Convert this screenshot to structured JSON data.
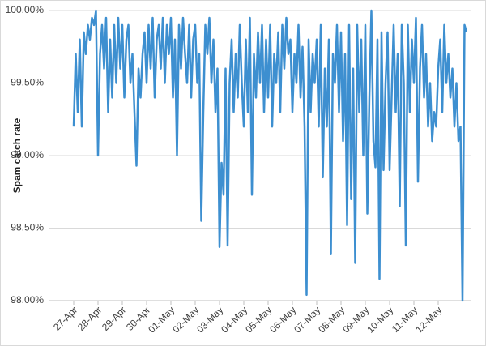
{
  "chart_data": {
    "type": "line",
    "y_label": "Spam catch rate",
    "categories": [
      "27-Apr",
      null,
      null,
      null,
      null,
      null,
      null,
      null,
      null,
      null,
      null,
      null,
      "28-Apr",
      null,
      null,
      null,
      null,
      null,
      null,
      null,
      null,
      null,
      null,
      null,
      "29-Apr",
      null,
      null,
      null,
      null,
      null,
      null,
      null,
      null,
      null,
      null,
      null,
      "30-Apr",
      null,
      null,
      null,
      null,
      null,
      null,
      null,
      null,
      null,
      null,
      null,
      "01-May",
      null,
      null,
      null,
      null,
      null,
      null,
      null,
      null,
      null,
      null,
      null,
      "02-May",
      null,
      null,
      null,
      null,
      null,
      null,
      null,
      null,
      null,
      null,
      null,
      "03-May",
      null,
      null,
      null,
      null,
      null,
      null,
      null,
      null,
      null,
      null,
      null,
      "04-May",
      null,
      null,
      null,
      null,
      null,
      null,
      null,
      null,
      null,
      null,
      null,
      "05-May",
      null,
      null,
      null,
      null,
      null,
      null,
      null,
      null,
      null,
      null,
      null,
      "06-May",
      null,
      null,
      null,
      null,
      null,
      null,
      null,
      null,
      null,
      null,
      null,
      "07-May",
      null,
      null,
      null,
      null,
      null,
      null,
      null,
      null,
      null,
      null,
      null,
      "08-May",
      null,
      null,
      null,
      null,
      null,
      null,
      null,
      null,
      null,
      null,
      null,
      "09-May",
      null,
      null,
      null,
      null,
      null,
      null,
      null,
      null,
      null,
      null,
      null,
      "10-May",
      null,
      null,
      null,
      null,
      null,
      null,
      null,
      null,
      null,
      null,
      null,
      "11-May",
      null,
      null,
      null,
      null,
      null,
      null,
      null,
      null,
      null,
      null,
      null,
      "12-May",
      null,
      null,
      null,
      null,
      null,
      null,
      null,
      null,
      null,
      null,
      null,
      null,
      null,
      null
    ],
    "series": [
      {
        "color": "#3d8fd0",
        "values": [
          99.2,
          99.7,
          99.3,
          99.8,
          99.2,
          99.85,
          99.7,
          99.9,
          99.8,
          99.95,
          99.9,
          100.0,
          99.0,
          99.7,
          99.9,
          99.6,
          99.95,
          99.3,
          99.8,
          99.4,
          99.9,
          99.5,
          99.95,
          99.6,
          99.9,
          99.4,
          99.8,
          99.9,
          99.5,
          99.7,
          99.3,
          98.93,
          99.6,
          99.4,
          99.7,
          99.85,
          99.5,
          99.9,
          99.6,
          99.95,
          99.4,
          99.8,
          99.9,
          99.6,
          99.95,
          99.5,
          99.9,
          99.7,
          99.95,
          99.4,
          99.8,
          99.0,
          99.9,
          99.6,
          99.95,
          99.7,
          99.5,
          99.9,
          99.4,
          99.8,
          99.9,
          99.5,
          99.7,
          98.55,
          99.3,
          99.9,
          99.7,
          99.95,
          99.5,
          99.8,
          99.3,
          99.6,
          98.37,
          98.95,
          98.73,
          99.6,
          98.38,
          99.5,
          99.8,
          99.3,
          99.7,
          99.4,
          99.9,
          99.5,
          99.2,
          99.8,
          99.3,
          99.95,
          98.73,
          99.7,
          99.4,
          99.85,
          99.5,
          99.9,
          99.3,
          99.8,
          99.4,
          99.9,
          99.2,
          99.7,
          99.5,
          99.85,
          99.3,
          99.9,
          99.6,
          99.95,
          99.7,
          99.8,
          99.3,
          99.7,
          99.5,
          99.9,
          99.4,
          99.75,
          99.2,
          98.04,
          99.8,
          99.3,
          99.7,
          99.5,
          99.8,
          99.2,
          99.9,
          98.85,
          99.6,
          99.2,
          99.8,
          98.32,
          99.7,
          99.5,
          99.9,
          99.3,
          99.85,
          99.1,
          99.7,
          98.52,
          99.9,
          98.7,
          99.6,
          98.26,
          99.9,
          99.3,
          99.8,
          99.0,
          99.9,
          98.6,
          99.4,
          100.0,
          99.1,
          98.92,
          99.8,
          98.15,
          99.85,
          98.9,
          99.5,
          99.85,
          98.9,
          99.4,
          99.9,
          99.3,
          99.7,
          98.65,
          99.9,
          99.5,
          98.38,
          99.9,
          99.3,
          99.8,
          99.5,
          99.95,
          98.82,
          99.6,
          99.9,
          99.4,
          99.7,
          99.2,
          99.5,
          99.1,
          99.3,
          99.2,
          99.6,
          99.8,
          99.3,
          99.9,
          99.5,
          99.7,
          99.4,
          99.6,
          99.2,
          99.5,
          99.1,
          99.2,
          98.0,
          99.9,
          99.85
        ]
      }
    ],
    "ylim": [
      98,
      100
    ],
    "yticks": [
      {
        "value": 98,
        "label": "98.00%"
      },
      {
        "value": 98.5,
        "label": "98.50%"
      },
      {
        "value": 99,
        "label": "99.00%"
      },
      {
        "value": 99.5,
        "label": "99.50%"
      },
      {
        "value": 100,
        "label": "100.00%"
      }
    ],
    "grid": true
  }
}
